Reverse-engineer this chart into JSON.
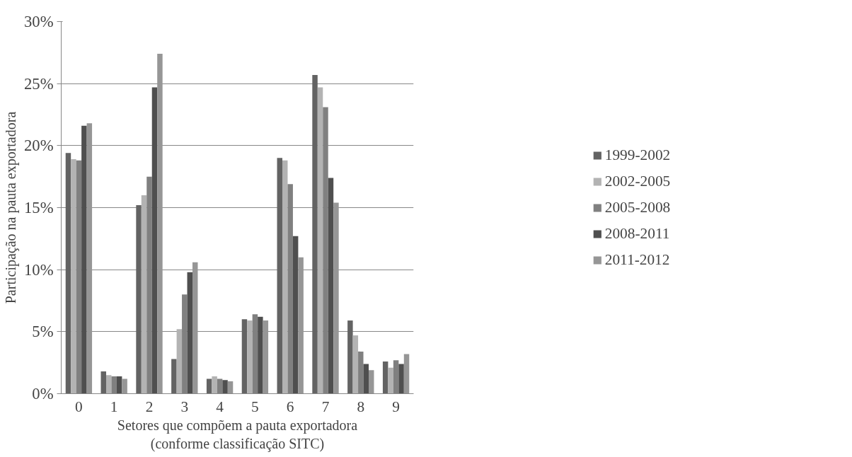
{
  "chart_data": {
    "type": "bar",
    "xlabel": "Setores que compõem a pauta exportadora\n(conforme classificação SITC)",
    "ylabel": "Participação na pauta exportadora",
    "categories": [
      "0",
      "1",
      "2",
      "3",
      "4",
      "5",
      "6",
      "7",
      "8",
      "9"
    ],
    "series": [
      {
        "name": "1999-2002",
        "color": "#636363",
        "values": [
          19.4,
          1.8,
          15.2,
          2.8,
          1.2,
          6.0,
          19.0,
          25.7,
          5.9,
          2.6
        ]
      },
      {
        "name": "2002-2005",
        "color": "#b3b3b3",
        "values": [
          18.9,
          1.5,
          16.0,
          5.2,
          1.4,
          5.9,
          18.8,
          24.7,
          4.7,
          2.1
        ]
      },
      {
        "name": "2005-2008",
        "color": "#808080",
        "values": [
          18.8,
          1.4,
          17.5,
          8.0,
          1.2,
          6.4,
          16.9,
          23.1,
          3.4,
          2.7
        ]
      },
      {
        "name": "2008-2011",
        "color": "#4f4f4f",
        "values": [
          21.6,
          1.4,
          24.7,
          9.8,
          1.1,
          6.2,
          12.7,
          17.4,
          2.4,
          2.4
        ]
      },
      {
        "name": "2011-2012",
        "color": "#969696",
        "values": [
          21.8,
          1.2,
          27.4,
          10.6,
          1.0,
          5.9,
          11.0,
          15.4,
          1.9,
          3.2
        ]
      }
    ],
    "ylim": [
      0,
      30
    ],
    "yticks": [
      {
        "value": 0,
        "label": "0%"
      },
      {
        "value": 5,
        "label": "5%"
      },
      {
        "value": 10,
        "label": "10%"
      },
      {
        "value": 15,
        "label": "15%"
      },
      {
        "value": 20,
        "label": "20%"
      },
      {
        "value": 25,
        "label": "25%"
      },
      {
        "value": 30,
        "label": "30%"
      }
    ],
    "grid": "y",
    "legend": "right"
  }
}
